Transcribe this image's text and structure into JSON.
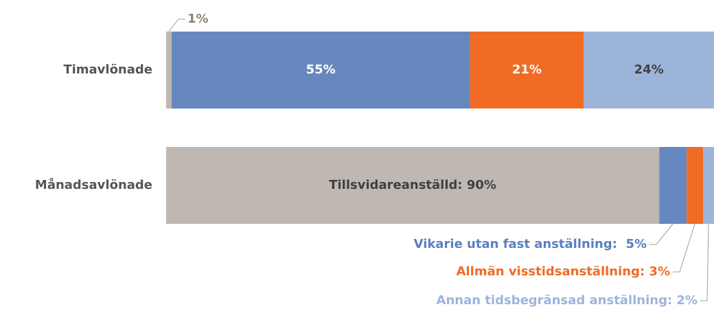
{
  "chart_data": {
    "type": "stacked-bar-horizontal",
    "categories": [
      "Timavlönade",
      "Månadsavlönade"
    ],
    "series": [
      {
        "color": "#bfb8b2",
        "values": [
          1,
          90
        ],
        "value_labels": [
          "1%",
          "Tillsvidareanställd: 90%"
        ]
      },
      {
        "color": "#6688bf",
        "values": [
          55,
          5
        ],
        "value_labels": [
          "55%",
          "Vikarie utan fast anställning:  5%"
        ]
      },
      {
        "color": "#f06b24",
        "values": [
          21,
          3
        ],
        "value_labels": [
          "21%",
          "Allmän visstidsanställning: 3%"
        ]
      },
      {
        "color": "#9db4da",
        "values": [
          24,
          2
        ],
        "value_labels": [
          "24%",
          "Annan tidsbegränsad anställning: 2%"
        ]
      }
    ]
  }
}
